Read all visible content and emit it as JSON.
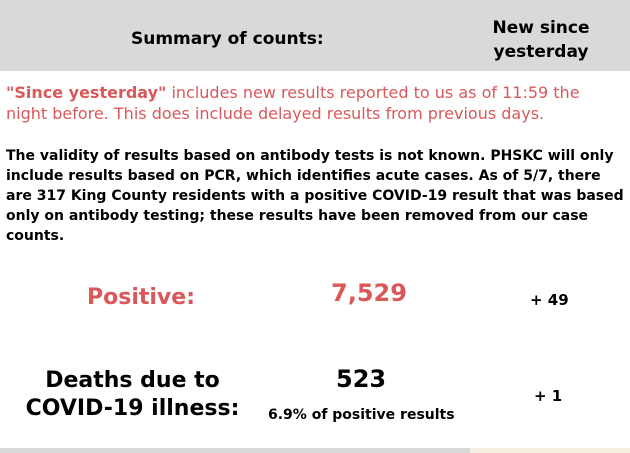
{
  "header": {
    "title": "Summary of counts:",
    "new_since": "New since yesterday"
  },
  "notes": {
    "since_emph": "\"Since yesterday\"",
    "since_rest": " includes new results reported to us as of 11:59 the night before. This does include delayed results from previous days.",
    "antibody": "The validity of results based on antibody tests is not known. PHSKC will only include results based on PCR, which identifies acute cases. As of 5/7, there are 317 King County residents with a positive COVID-19 result that was based only on antibody testing; these results have been removed from our case counts."
  },
  "positive": {
    "label": "Positive:",
    "value": "7,529",
    "new": "+ 49"
  },
  "deaths": {
    "label": "Deaths due to COVID-19 illness:",
    "value": "523",
    "pct": "6.9% of positive results",
    "new": "+ 1"
  },
  "colors": {
    "accent_red": "#d9595b",
    "header_gray": "#d9d9d9"
  }
}
